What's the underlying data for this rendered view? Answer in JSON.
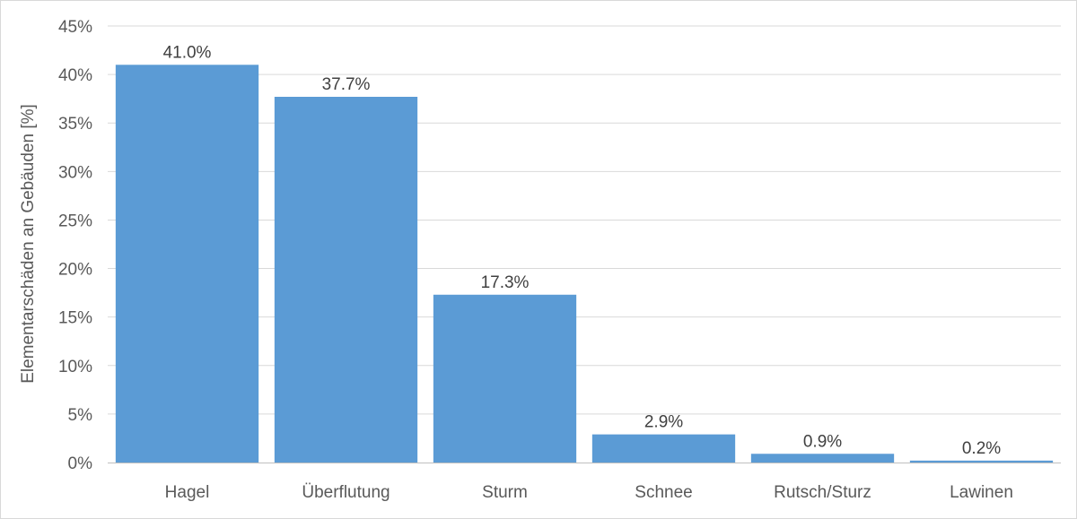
{
  "chart_data": {
    "type": "bar",
    "categories": [
      "Hagel",
      "Überflutung",
      "Sturm",
      "Schnee",
      "Rutsch/Sturz",
      "Lawinen"
    ],
    "values": [
      41.0,
      37.7,
      17.3,
      2.9,
      0.9,
      0.2
    ],
    "data_labels": [
      "41.0%",
      "37.7%",
      "17.3%",
      "2.9%",
      "0.9%",
      "0.2%"
    ],
    "title": "",
    "xlabel": "",
    "ylabel": "Elementarschäden an Gebäuden [%]",
    "ylim": [
      0,
      45
    ],
    "yticks": [
      0,
      5,
      10,
      15,
      20,
      25,
      30,
      35,
      40,
      45
    ],
    "ytick_labels": [
      "0%",
      "5%",
      "10%",
      "15%",
      "20%",
      "25%",
      "30%",
      "35%",
      "40%",
      "45%"
    ],
    "grid": true,
    "legend": "none",
    "colors": {
      "bar": "#5b9bd5",
      "grid": "#d9d9d9",
      "axis": "#bfbfbf"
    }
  }
}
